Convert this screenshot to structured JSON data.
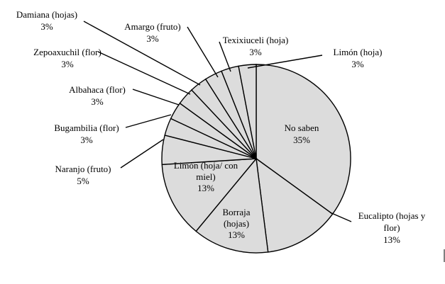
{
  "chart_data": {
    "type": "pie",
    "title": "",
    "slices": [
      {
        "label": "No saben",
        "value": 35,
        "value_label": "35%",
        "label_lines": [
          "No saben"
        ]
      },
      {
        "label": "Eucalipto (hojas y flor)",
        "value": 13,
        "value_label": "13%",
        "label_lines": [
          "Eucalipto (hojas y",
          "flor)"
        ]
      },
      {
        "label": "Borraja (hojas)",
        "value": 13,
        "value_label": "13%",
        "label_lines": [
          "Borraja",
          "(hojas)"
        ]
      },
      {
        "label": "Limón (hoja/ con miel)",
        "value": 13,
        "value_label": "13%",
        "label_lines": [
          "Limón (hoja/ con",
          "miel)"
        ]
      },
      {
        "label": "Naranjo (fruto)",
        "value": 5,
        "value_label": "5%",
        "label_lines": [
          "Naranjo (fruto)"
        ]
      },
      {
        "label": "Bugambilia (flor)",
        "value": 3,
        "value_label": "3%",
        "label_lines": [
          "Bugambilia (flor)"
        ]
      },
      {
        "label": "Albahaca (flor)",
        "value": 3,
        "value_label": "3%",
        "label_lines": [
          "Albahaca (flor)"
        ]
      },
      {
        "label": "Zepoaxuchil (flor)",
        "value": 3,
        "value_label": "3%",
        "label_lines": [
          "Zepoaxuchil (flor)"
        ]
      },
      {
        "label": "Damiana (hojas)",
        "value": 3,
        "value_label": "3%",
        "label_lines": [
          "Damiana (hojas)"
        ]
      },
      {
        "label": "Amargo (fruto)",
        "value": 3,
        "value_label": "3%",
        "label_lines": [
          "Amargo (fruto)"
        ]
      },
      {
        "label": "Texixiuceli (hoja)",
        "value": 3,
        "value_label": "3%",
        "label_lines": [
          "Texixiuceli (hoja)"
        ]
      },
      {
        "label": "Limón (hoja)",
        "value": 3,
        "value_label": "3%",
        "label_lines": [
          "Limón (hoja)"
        ]
      }
    ],
    "colors": {
      "slice_fill": "#dcdcdc",
      "stroke": "#000000"
    },
    "legend": "none"
  }
}
